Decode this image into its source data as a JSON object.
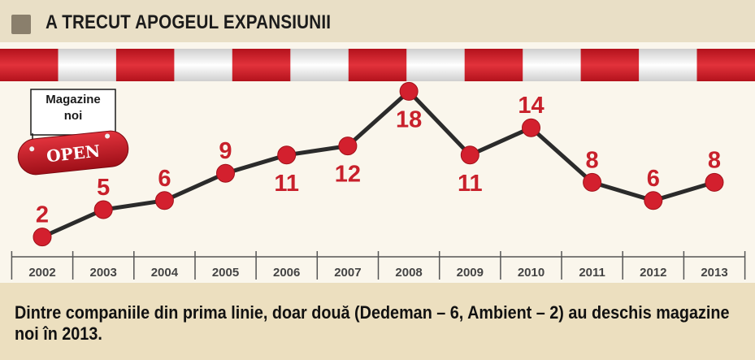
{
  "title": "A TRECUT APOGEUL EXPANSIUNII",
  "sign": {
    "label_line1": "Magazine",
    "label_line2": "noi",
    "open_text": "OPEN"
  },
  "caption": "Dintre companiile din prima linie, doar două (Dedeman – 6, Ambient – 2) au deschis magazine noi în  2013.",
  "colors": {
    "line": "#2b2b2b",
    "marker": "#d3202e",
    "value_label": "#c8202b",
    "awning_red": "#d3202e",
    "awning_white": "#f4f4f4"
  },
  "chart_data": {
    "type": "line",
    "categories": [
      "2002",
      "2003",
      "2004",
      "2005",
      "2006",
      "2007",
      "2008",
      "2009",
      "2010",
      "2011",
      "2012",
      "2013"
    ],
    "values": [
      2,
      5,
      6,
      9,
      11,
      12,
      18,
      11,
      14,
      8,
      6,
      8
    ],
    "title": "A TRECUT APOGEUL EXPANSIUNII",
    "xlabel": "",
    "ylabel": "",
    "ylim": [
      0,
      20
    ],
    "grid": false,
    "value_labels": true,
    "series": [
      {
        "values": [
          2,
          5,
          6,
          9,
          11,
          12,
          18,
          11,
          14,
          8,
          6,
          8
        ]
      }
    ]
  }
}
